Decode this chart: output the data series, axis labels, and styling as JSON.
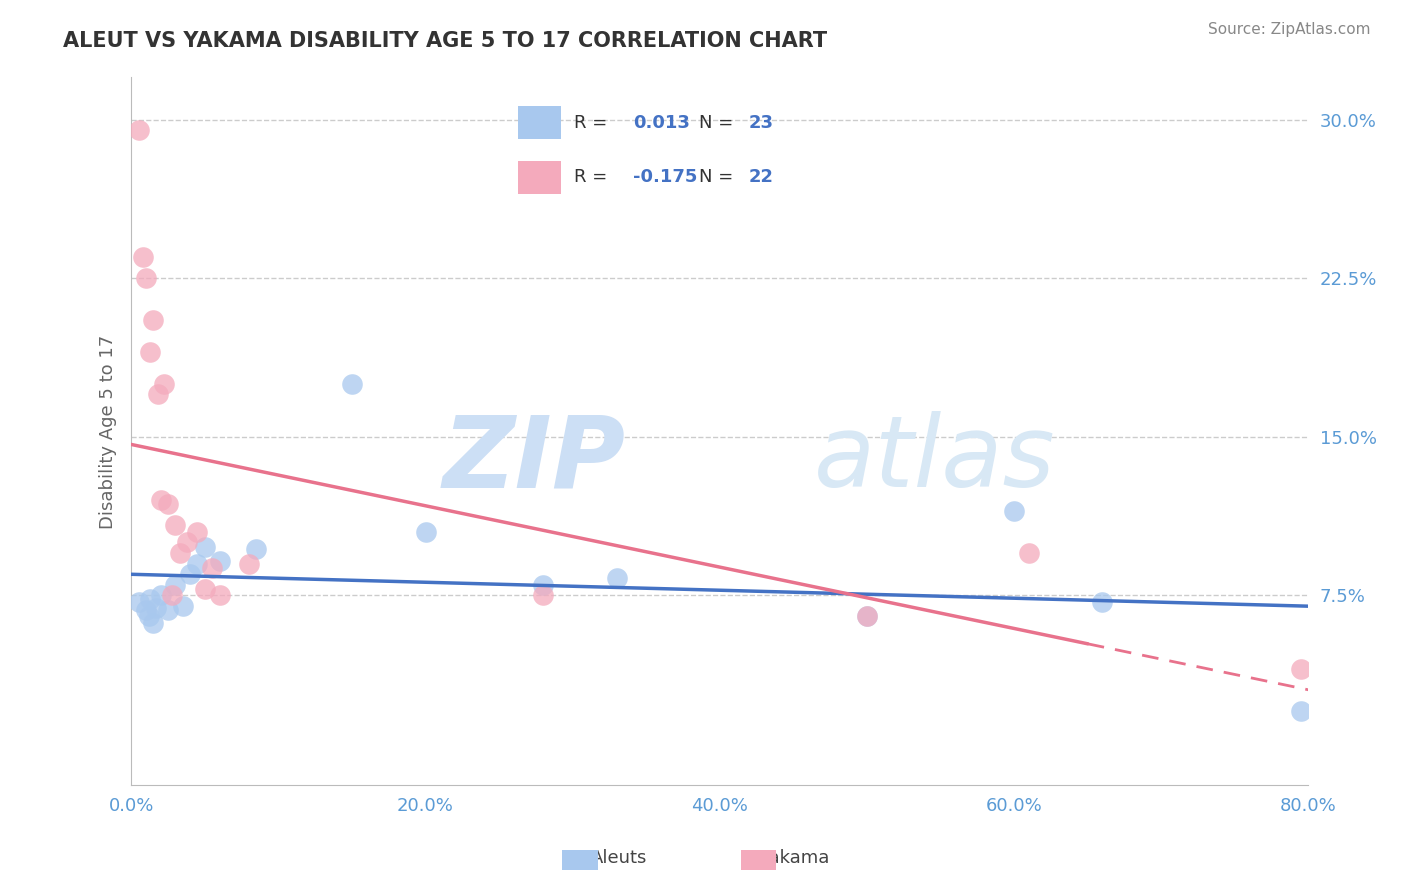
{
  "title": "ALEUT VS YAKAMA DISABILITY AGE 5 TO 17 CORRELATION CHART",
  "source": "Source: ZipAtlas.com",
  "ylabel": "Disability Age 5 to 17",
  "xlim": [
    0.0,
    0.8
  ],
  "ylim": [
    -0.015,
    0.32
  ],
  "yticks": [
    0.075,
    0.15,
    0.225,
    0.3
  ],
  "ytick_labels": [
    "7.5%",
    "15.0%",
    "22.5%",
    "30.0%"
  ],
  "xticks": [
    0.0,
    0.2,
    0.4,
    0.6,
    0.8
  ],
  "xtick_labels": [
    "0.0%",
    "20.0%",
    "40.0%",
    "60.0%",
    "80.0%"
  ],
  "aleuts_color": "#A8C8EE",
  "yakama_color": "#F4AABC",
  "aleuts_line_color": "#4472C4",
  "yakama_line_color": "#E8728C",
  "r_aleuts": 0.013,
  "n_aleuts": 23,
  "r_yakama": -0.175,
  "n_yakama": 22,
  "aleuts_x": [
    0.005,
    0.01,
    0.012,
    0.013,
    0.015,
    0.017,
    0.02,
    0.025,
    0.03,
    0.035,
    0.04,
    0.045,
    0.05,
    0.06,
    0.085,
    0.15,
    0.2,
    0.28,
    0.33,
    0.5,
    0.6,
    0.66,
    0.795
  ],
  "aleuts_y": [
    0.072,
    0.068,
    0.065,
    0.073,
    0.062,
    0.069,
    0.075,
    0.068,
    0.08,
    0.07,
    0.085,
    0.09,
    0.098,
    0.091,
    0.097,
    0.175,
    0.105,
    0.08,
    0.083,
    0.065,
    0.115,
    0.072,
    0.02
  ],
  "yakama_x": [
    0.005,
    0.008,
    0.01,
    0.013,
    0.015,
    0.018,
    0.02,
    0.022,
    0.025,
    0.028,
    0.03,
    0.033,
    0.038,
    0.045,
    0.05,
    0.055,
    0.06,
    0.08,
    0.28,
    0.5,
    0.61,
    0.795
  ],
  "yakama_y": [
    0.295,
    0.235,
    0.225,
    0.19,
    0.205,
    0.17,
    0.12,
    0.175,
    0.118,
    0.075,
    0.108,
    0.095,
    0.1,
    0.105,
    0.078,
    0.088,
    0.075,
    0.09,
    0.075,
    0.065,
    0.095,
    0.04
  ],
  "watermark_zip": "ZIP",
  "watermark_atlas": "atlas",
  "background_color": "#FFFFFF",
  "grid_color": "#CCCCCC",
  "title_color": "#333333",
  "source_color": "#888888",
  "tick_color": "#5B9BD5",
  "ylabel_color": "#666666"
}
